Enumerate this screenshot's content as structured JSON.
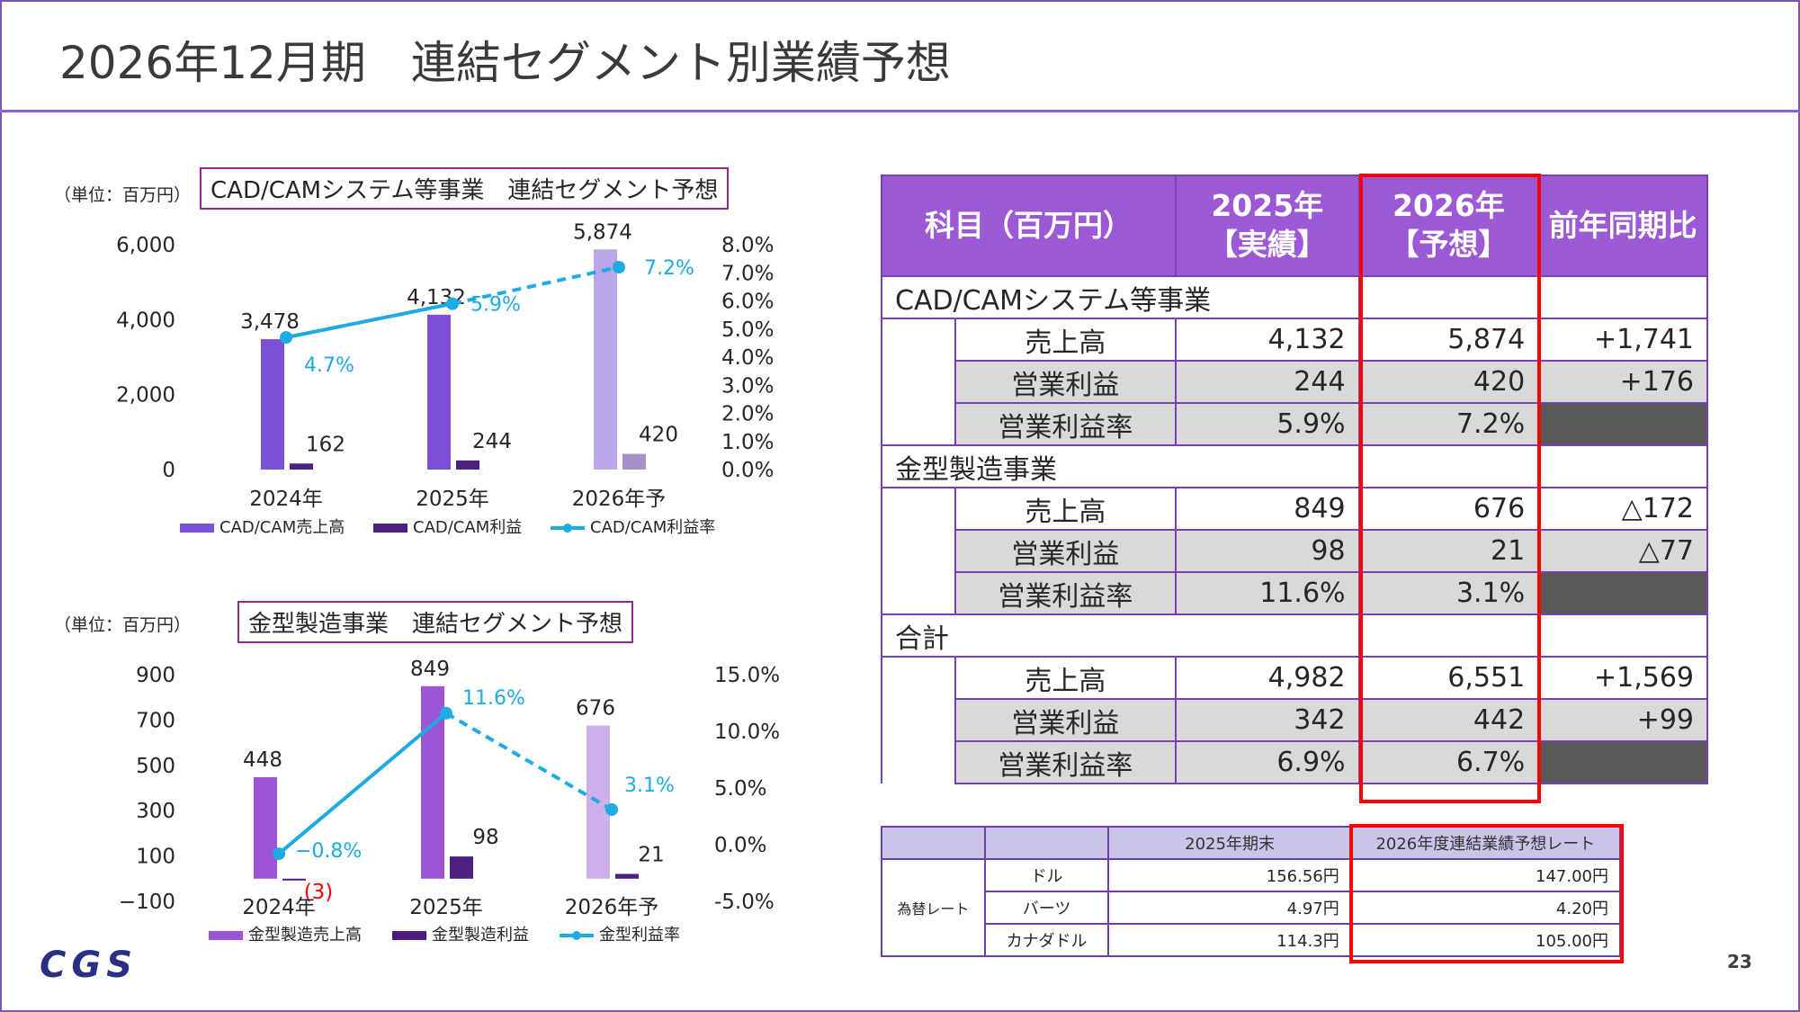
{
  "page": {
    "title": "2026年12月期　連結セグメント別業績予想",
    "page_number": "23"
  },
  "logo": {
    "text": "CGS",
    "color": "#2b2f83"
  },
  "colors": {
    "accent": "#8f5fd0",
    "table_header": "#9b59d6",
    "highlight": "#ff0000",
    "rate_line": "#1cabe2"
  },
  "chart_data": [
    {
      "type": "bar",
      "title": "CAD/CAMシステム等事業　連結セグメント予想",
      "unit_label": "（単位：百万円）",
      "categories": [
        "2024年",
        "2025年",
        "2026年予"
      ],
      "series": [
        {
          "name": "CAD/CAM売上高",
          "values": [
            3478,
            4132,
            5874
          ],
          "value_labels": [
            "3,478",
            "4,132",
            "5,874"
          ],
          "colors": [
            "#7b4fd8",
            "#7b4fd8",
            "#b8a6e6"
          ]
        },
        {
          "name": "CAD/CAM利益",
          "values": [
            162,
            244,
            420
          ],
          "value_labels": [
            "162",
            "244",
            "420"
          ],
          "colors": [
            "#4b2080",
            "#4b2080",
            "#a690c8"
          ]
        },
        {
          "name": "CAD/CAM利益率",
          "type": "line",
          "axis": "right",
          "values": [
            4.7,
            5.9,
            7.2
          ],
          "value_labels": [
            "4.7%",
            "5.9%",
            "7.2%"
          ],
          "dashed_from_index": 1,
          "color": "#1cabe2"
        }
      ],
      "ylim": [
        0,
        6000
      ],
      "y_ticks": [
        "6,000",
        "4,000",
        "2,000",
        "0"
      ],
      "y2lim": [
        0,
        8
      ],
      "y2_ticks": [
        "8.0%",
        "7.0%",
        "6.0%",
        "5.0%",
        "4.0%",
        "3.0%",
        "2.0%",
        "1.0%",
        "0.0%"
      ],
      "legend": "bottom"
    },
    {
      "type": "bar",
      "title": "金型製造事業　連結セグメント予想",
      "unit_label": "（単位：百万円）",
      "categories": [
        "2024年",
        "2025年",
        "2026年予"
      ],
      "series": [
        {
          "name": "金型製造売上高",
          "values": [
            448,
            849,
            676
          ],
          "value_labels": [
            "448",
            "849",
            "676"
          ],
          "colors": [
            "#9b55d6",
            "#9b55d6",
            "#cbb0ea"
          ]
        },
        {
          "name": "金型製造利益",
          "values": [
            -3,
            98,
            21
          ],
          "value_labels": [
            "(3)",
            "98",
            "21"
          ],
          "colors": [
            "#4b2080",
            "#4b2080",
            "#4b2080"
          ]
        },
        {
          "name": "金型利益率",
          "type": "line",
          "axis": "right",
          "values": [
            -0.8,
            11.6,
            3.1
          ],
          "value_labels": [
            "−0.8%",
            "11.6%",
            "3.1%"
          ],
          "dashed_from_index": 1,
          "color": "#1cabe2"
        }
      ],
      "ylim": [
        -100,
        900
      ],
      "y_ticks": [
        "900",
        "700",
        "500",
        "300",
        "100",
        "−100"
      ],
      "y2lim": [
        -5,
        15
      ],
      "y2_ticks": [
        "15.0%",
        "10.0%",
        "5.0%",
        "0.0%",
        "-5.0%"
      ],
      "legend": "bottom"
    },
    {
      "type": "table",
      "headers": [
        "科目（百万円）",
        "2025年\n【実績】",
        "2026年\n【予想】",
        "前年同期比"
      ],
      "sections": [
        {
          "name": "CAD/CAMシステム等事業",
          "rows": [
            {
              "label": "売上高",
              "v2025": "4,132",
              "v2026": "5,874",
              "yoy": "+1,741"
            },
            {
              "label": "営業利益",
              "v2025": "244",
              "v2026": "420",
              "yoy": "+176"
            },
            {
              "label": "営業利益率",
              "v2025": "5.9%",
              "v2026": "7.2%",
              "yoy": ""
            }
          ]
        },
        {
          "name": "金型製造事業",
          "rows": [
            {
              "label": "売上高",
              "v2025": "849",
              "v2026": "676",
              "yoy": "△172"
            },
            {
              "label": "営業利益",
              "v2025": "98",
              "v2026": "21",
              "yoy": "△77"
            },
            {
              "label": "営業利益率",
              "v2025": "11.6%",
              "v2026": "3.1%",
              "yoy": ""
            }
          ]
        },
        {
          "name": "合計",
          "rows": [
            {
              "label": "売上高",
              "v2025": "4,982",
              "v2026": "6,551",
              "yoy": "+1,569"
            },
            {
              "label": "営業利益",
              "v2025": "342",
              "v2026": "442",
              "yoy": "+99"
            },
            {
              "label": "営業利益率",
              "v2025": "6.9%",
              "v2026": "6.7%",
              "yoy": ""
            }
          ]
        }
      ]
    },
    {
      "type": "table",
      "headers": [
        "",
        "",
        "2025年期末",
        "2026年度連結業績予想レート"
      ],
      "group_label": "為替レート",
      "rows": [
        {
          "currency": "ドル",
          "end2025": "156.56円",
          "forecast2026": "147.00円"
        },
        {
          "currency": "バーツ",
          "end2025": "4.97円",
          "forecast2026": "4.20円"
        },
        {
          "currency": "カナダドル",
          "end2025": "114.3円",
          "forecast2026": "105.00円"
        }
      ]
    }
  ]
}
